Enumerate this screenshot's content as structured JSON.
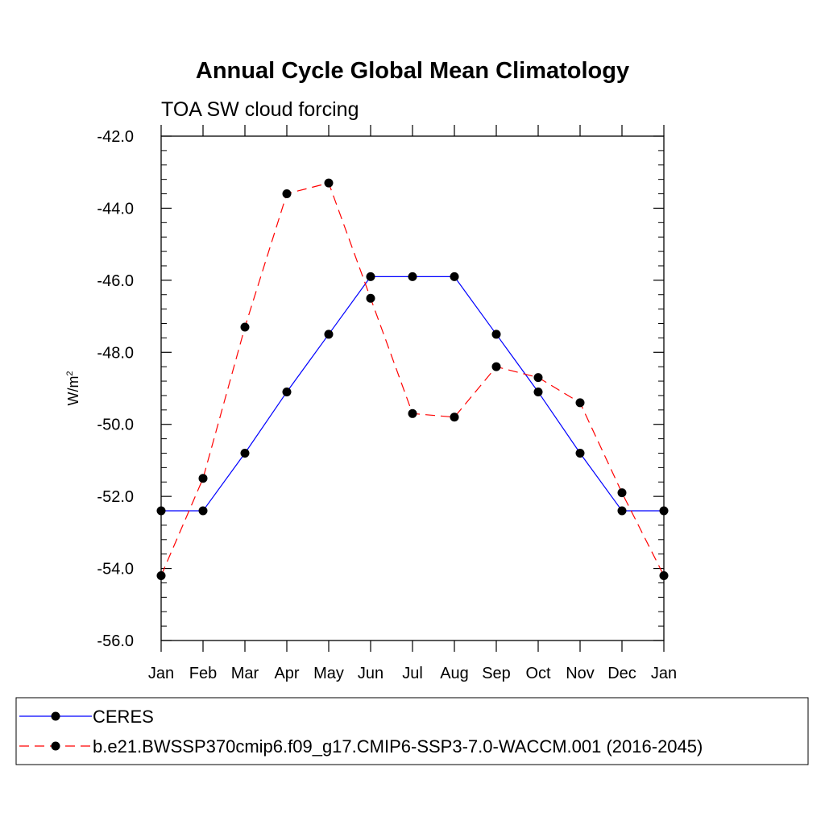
{
  "chart_data": {
    "type": "line",
    "title": "Annual Cycle Global Mean Climatology",
    "subtitle": "TOA SW cloud forcing",
    "ylabel": "W/m",
    "ylabel_sup": "2",
    "ylim": [
      -56,
      -42
    ],
    "yticks": [
      -42,
      -44,
      -46,
      -48,
      -50,
      -52,
      -54,
      -56
    ],
    "ytick_labels": [
      "-42.0",
      "-44.0",
      "-46.0",
      "-48.0",
      "-50.0",
      "-52.0",
      "-54.0",
      "-56.0"
    ],
    "categories": [
      "Jan",
      "Feb",
      "Mar",
      "Apr",
      "May",
      "Jun",
      "Jul",
      "Aug",
      "Sep",
      "Oct",
      "Nov",
      "Dec",
      "Jan"
    ],
    "series": [
      {
        "name": "CERES",
        "color": "#0000ff",
        "dash": "solid",
        "values": [
          -52.4,
          -52.4,
          -50.8,
          -49.1,
          -47.5,
          -45.9,
          -45.9,
          -45.9,
          -47.5,
          -49.1,
          -50.8,
          -52.4,
          -52.4
        ]
      },
      {
        "name": "b.e21.BWSSP370cmip6.f09_g17.CMIP6-SSP3-7.0-WACCM.001 (2016-2045)",
        "color": "#ff0000",
        "dash": "dashed",
        "values": [
          -54.2,
          -51.5,
          -47.3,
          -43.6,
          -43.3,
          -46.5,
          -49.7,
          -49.8,
          -48.4,
          -48.7,
          -49.4,
          -51.9,
          -54.2
        ]
      }
    ],
    "legend_position": "bottom",
    "grid": false
  }
}
